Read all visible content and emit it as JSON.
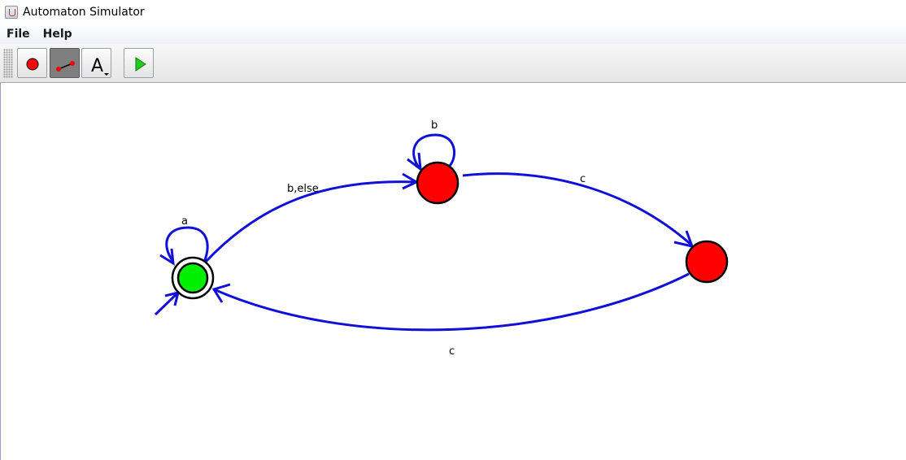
{
  "window": {
    "title": "Automaton Simulator",
    "icon": "java-cup-icon"
  },
  "menu": [
    {
      "label": "File"
    },
    {
      "label": "Help"
    }
  ],
  "toolbar": {
    "tools": [
      {
        "name": "add-state-tool",
        "icon": "red-circle-icon",
        "selected": false
      },
      {
        "name": "add-transition-tool",
        "icon": "transition-line-icon",
        "selected": true
      },
      {
        "name": "text-tool",
        "icon": "text-A-dropdown-icon",
        "glyph": "A",
        "selected": false
      },
      {
        "name": "run-simulation",
        "icon": "play-triangle-icon",
        "selected": false
      }
    ]
  },
  "automaton": {
    "states": [
      {
        "id": "s0",
        "initial": true,
        "accepting": true,
        "color": "#00ee00"
      },
      {
        "id": "s1",
        "initial": false,
        "accepting": false,
        "color": "#ff0000"
      },
      {
        "id": "s2",
        "initial": false,
        "accepting": false,
        "color": "#ff0000"
      }
    ],
    "transitions": [
      {
        "from": "s0",
        "to": "s0",
        "label": "a"
      },
      {
        "from": "s0",
        "to": "s1",
        "label": "b,else"
      },
      {
        "from": "s1",
        "to": "s1",
        "label": "b"
      },
      {
        "from": "s1",
        "to": "s2",
        "label": "c"
      },
      {
        "from": "s2",
        "to": "s0",
        "label": "c"
      }
    ],
    "edge_color": "#1010d8"
  }
}
